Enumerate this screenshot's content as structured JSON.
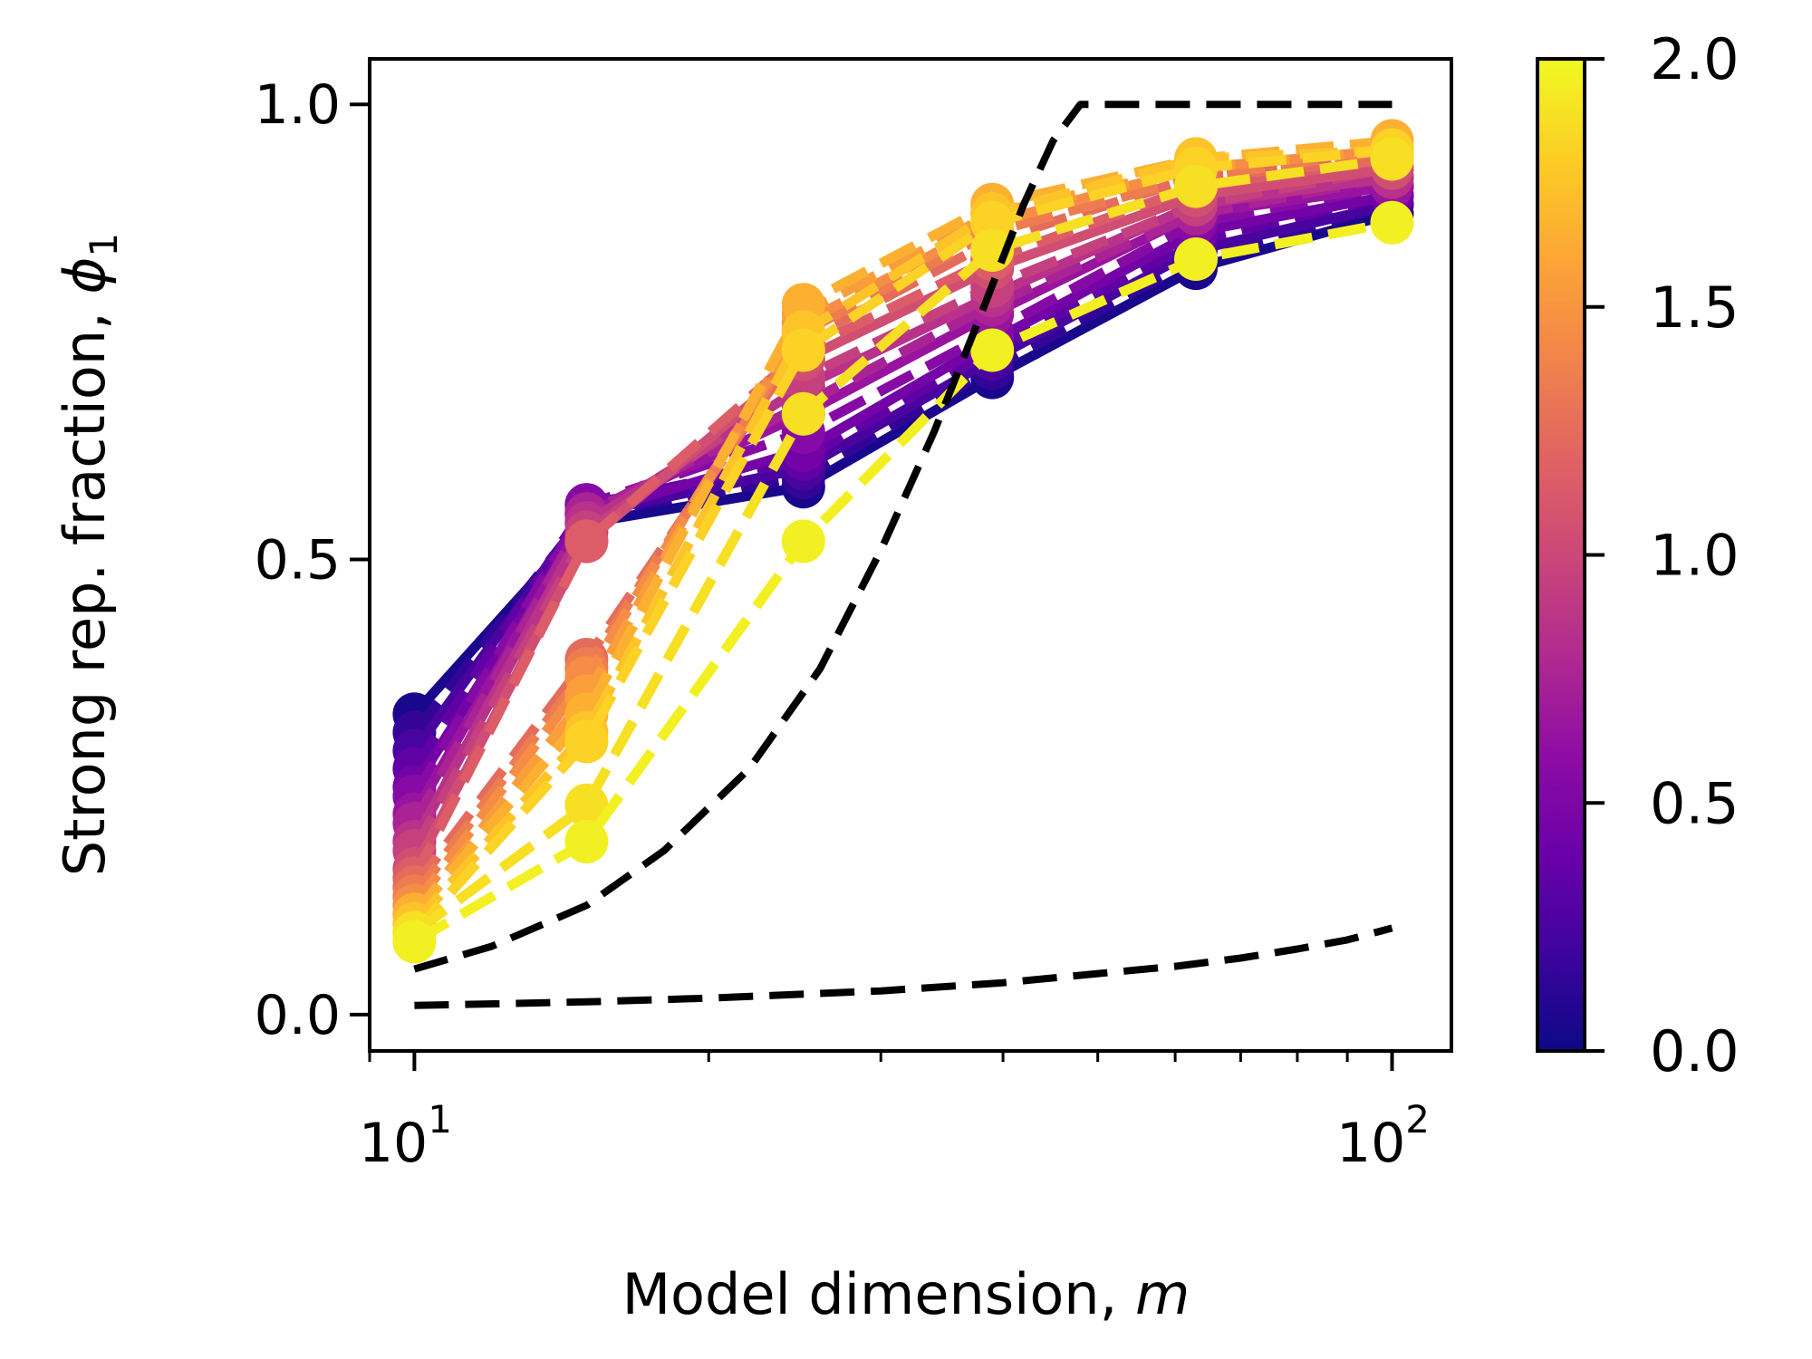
{
  "chart_data": {
    "type": "line",
    "xlabel": "Model dimension, ",
    "xlabel_var": "m",
    "ylabel": "Strong rep. fraction, ",
    "ylabel_var": "ϕ",
    "ylabel_sub": "1",
    "xscale": "log",
    "xlim": [
      9.0,
      115
    ],
    "ylim": [
      -0.04,
      1.05
    ],
    "x_ticks": [
      {
        "value": 10,
        "base": "10",
        "exp": "1"
      },
      {
        "value": 100,
        "base": "10",
        "exp": "2"
      }
    ],
    "y_ticks": [
      {
        "value": 0.0,
        "label": "0.0"
      },
      {
        "value": 0.5,
        "label": "0.5"
      },
      {
        "value": 1.0,
        "label": "1.0"
      }
    ],
    "grid": false,
    "legend": "none",
    "x": [
      10,
      15,
      25,
      39,
      63,
      100
    ],
    "series": [
      {
        "c": 0.05,
        "style": "solid",
        "values": [
          0.33,
          0.54,
          0.58,
          0.7,
          0.82,
          0.88
        ]
      },
      {
        "c": 0.15,
        "style": "dashed",
        "values": [
          0.31,
          0.55,
          0.59,
          0.71,
          0.83,
          0.89
        ]
      },
      {
        "c": 0.25,
        "style": "solid",
        "values": [
          0.29,
          0.55,
          0.6,
          0.72,
          0.84,
          0.89
        ]
      },
      {
        "c": 0.35,
        "style": "dashed",
        "values": [
          0.27,
          0.56,
          0.61,
          0.73,
          0.85,
          0.9
        ]
      },
      {
        "c": 0.45,
        "style": "solid",
        "values": [
          0.25,
          0.55,
          0.62,
          0.74,
          0.86,
          0.9
        ]
      },
      {
        "c": 0.55,
        "style": "dashed",
        "values": [
          0.24,
          0.56,
          0.64,
          0.75,
          0.87,
          0.91
        ]
      },
      {
        "c": 0.65,
        "style": "solid",
        "values": [
          0.22,
          0.55,
          0.66,
          0.77,
          0.88,
          0.91
        ]
      },
      {
        "c": 0.75,
        "style": "dashed",
        "values": [
          0.21,
          0.55,
          0.67,
          0.78,
          0.88,
          0.92
        ]
      },
      {
        "c": 0.85,
        "style": "solid",
        "values": [
          0.19,
          0.54,
          0.69,
          0.79,
          0.89,
          0.92
        ]
      },
      {
        "c": 0.95,
        "style": "dashed",
        "values": [
          0.18,
          0.53,
          0.7,
          0.8,
          0.89,
          0.93
        ]
      },
      {
        "c": 1.05,
        "style": "solid",
        "values": [
          0.16,
          0.52,
          0.72,
          0.82,
          0.9,
          0.93
        ]
      },
      {
        "c": 1.15,
        "style": "dashed",
        "values": [
          0.15,
          0.52,
          0.73,
          0.83,
          0.91,
          0.94
        ]
      },
      {
        "c": 1.25,
        "style": "dashed",
        "values": [
          0.14,
          0.39,
          0.74,
          0.85,
          0.92,
          0.94
        ]
      },
      {
        "c": 1.35,
        "style": "dashed",
        "values": [
          0.13,
          0.38,
          0.75,
          0.86,
          0.92,
          0.95
        ]
      },
      {
        "c": 1.45,
        "style": "dashed",
        "values": [
          0.12,
          0.37,
          0.76,
          0.87,
          0.93,
          0.95
        ]
      },
      {
        "c": 1.55,
        "style": "dashed",
        "values": [
          0.11,
          0.35,
          0.77,
          0.88,
          0.93,
          0.95
        ]
      },
      {
        "c": 1.65,
        "style": "dashed",
        "values": [
          0.11,
          0.33,
          0.78,
          0.89,
          0.94,
          0.96
        ]
      },
      {
        "c": 1.75,
        "style": "dashed",
        "values": [
          0.1,
          0.31,
          0.75,
          0.88,
          0.94,
          0.95
        ]
      },
      {
        "c": 1.82,
        "style": "dashed",
        "values": [
          0.09,
          0.3,
          0.73,
          0.87,
          0.93,
          0.95
        ]
      },
      {
        "c": 1.88,
        "style": "dashed",
        "values": [
          0.09,
          0.23,
          0.66,
          0.84,
          0.91,
          0.94
        ]
      },
      {
        "c": 1.96,
        "style": "dashed",
        "values": [
          0.08,
          0.19,
          0.52,
          0.73,
          0.83,
          0.87
        ]
      }
    ],
    "reference_curves": [
      {
        "name_hint": "upper bound",
        "x": [
          10,
          12,
          15,
          18,
          22,
          26,
          30,
          34,
          38,
          42,
          45,
          48,
          52,
          60,
          75,
          100
        ],
        "values": [
          0.05,
          0.075,
          0.12,
          0.18,
          0.27,
          0.38,
          0.51,
          0.64,
          0.77,
          0.89,
          0.96,
          1.0,
          1.0,
          1.0,
          1.0,
          1.0
        ]
      },
      {
        "name_hint": "lower bound",
        "x": [
          10,
          15,
          20,
          30,
          40,
          50,
          60,
          70,
          80,
          90,
          100
        ],
        "values": [
          0.01,
          0.014,
          0.018,
          0.026,
          0.035,
          0.045,
          0.053,
          0.062,
          0.072,
          0.082,
          0.095
        ]
      }
    ],
    "colorbar": {
      "colormap": "plasma",
      "range": [
        0.0,
        2.0
      ],
      "ticks": [
        {
          "value": 0.0,
          "label": "0.0"
        },
        {
          "value": 0.5,
          "label": "0.5"
        },
        {
          "value": 1.0,
          "label": "1.0"
        },
        {
          "value": 1.5,
          "label": "1.5"
        },
        {
          "value": 2.0,
          "label": "2.0"
        }
      ],
      "stops": [
        "#0d0887",
        "#3e049c",
        "#6a00a8",
        "#8f0da4",
        "#b12a90",
        "#cc4778",
        "#e16462",
        "#f2844b",
        "#fca636",
        "#fcce25",
        "#f0f921"
      ]
    }
  }
}
